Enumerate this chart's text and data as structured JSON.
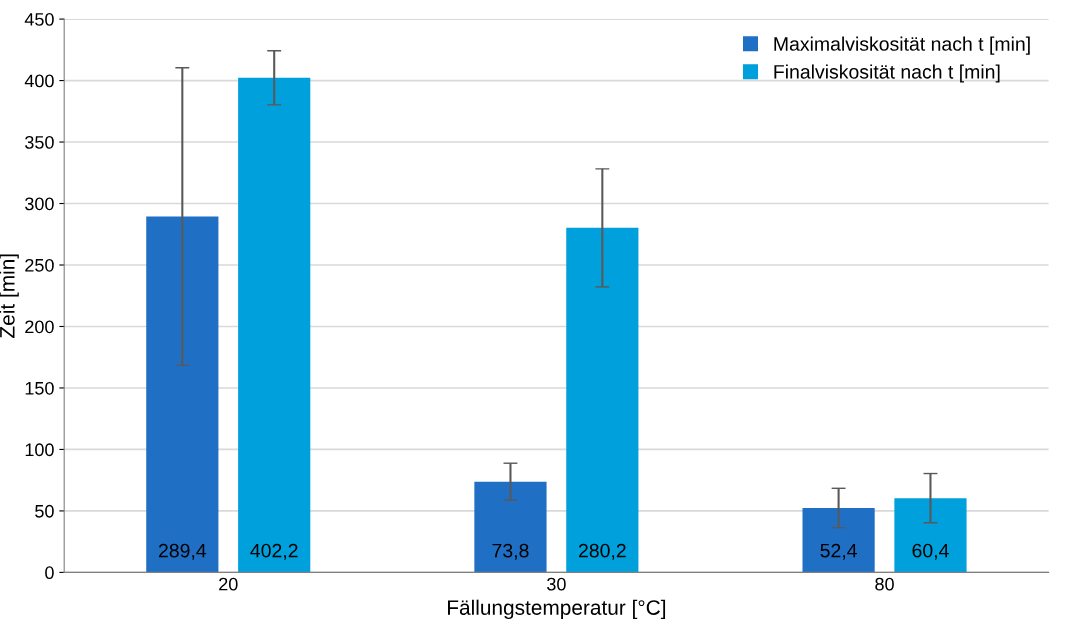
{
  "chart_data": {
    "type": "bar",
    "xlabel": "Fällungstemperatur [°C]",
    "ylabel": "Zeit [min]",
    "categories": [
      "20",
      "30",
      "80"
    ],
    "series": [
      {
        "name": "Maximalviskosität nach t [min]",
        "color": "#1f6fc5",
        "values": [
          289.4,
          73.8,
          52.4
        ],
        "errors": [
          121,
          15,
          16
        ],
        "value_labels": [
          "289,4",
          "73,8",
          "52,4"
        ]
      },
      {
        "name": "Finalviskosität nach t [min]",
        "color": "#00a0dc",
        "values": [
          402.2,
          280.2,
          60.4
        ],
        "errors": [
          22,
          48,
          20
        ],
        "value_labels": [
          "402,2",
          "280,2",
          "60,4"
        ]
      }
    ],
    "ylim": [
      0,
      450
    ],
    "yticks": [
      0,
      50,
      100,
      150,
      200,
      250,
      300,
      350,
      400,
      450
    ],
    "grid": "y",
    "legend": "top right"
  }
}
